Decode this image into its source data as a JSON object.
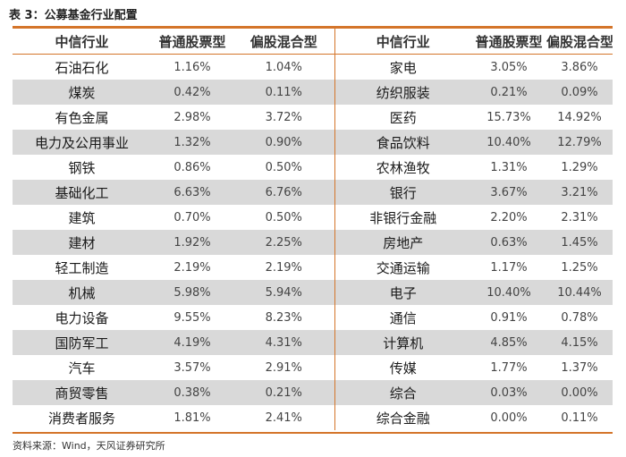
{
  "title": "表 3：公募基金行业配置",
  "source": "资料来源：Wind，天风证券研究所",
  "headers": [
    "中信行业",
    "普通股票型",
    "偏股混合型",
    "中信行业",
    "普通股票型",
    "偏股混合型"
  ],
  "colors": {
    "accent": "#d4752a",
    "shade": "#d9d9d9"
  },
  "rows": [
    {
      "l_name": "石油石化",
      "l_stock": "1.16%",
      "l_mixed": "1.04%",
      "r_name": "家电",
      "r_stock": "3.05%",
      "r_mixed": "3.86%"
    },
    {
      "l_name": "煤炭",
      "l_stock": "0.42%",
      "l_mixed": "0.11%",
      "r_name": "纺织服装",
      "r_stock": "0.21%",
      "r_mixed": "0.09%"
    },
    {
      "l_name": "有色金属",
      "l_stock": "2.98%",
      "l_mixed": "3.72%",
      "r_name": "医药",
      "r_stock": "15.73%",
      "r_mixed": "14.92%"
    },
    {
      "l_name": "电力及公用事业",
      "l_stock": "1.32%",
      "l_mixed": "0.90%",
      "r_name": "食品饮料",
      "r_stock": "10.40%",
      "r_mixed": "12.79%"
    },
    {
      "l_name": "钢铁",
      "l_stock": "0.86%",
      "l_mixed": "0.50%",
      "r_name": "农林渔牧",
      "r_stock": "1.31%",
      "r_mixed": "1.29%"
    },
    {
      "l_name": "基础化工",
      "l_stock": "6.63%",
      "l_mixed": "6.76%",
      "r_name": "银行",
      "r_stock": "3.67%",
      "r_mixed": "3.21%"
    },
    {
      "l_name": "建筑",
      "l_stock": "0.70%",
      "l_mixed": "0.50%",
      "r_name": "非银行金融",
      "r_stock": "2.20%",
      "r_mixed": "2.31%"
    },
    {
      "l_name": "建材",
      "l_stock": "1.92%",
      "l_mixed": "2.25%",
      "r_name": "房地产",
      "r_stock": "0.63%",
      "r_mixed": "1.45%"
    },
    {
      "l_name": "轻工制造",
      "l_stock": "2.19%",
      "l_mixed": "2.19%",
      "r_name": "交通运输",
      "r_stock": "1.17%",
      "r_mixed": "1.25%"
    },
    {
      "l_name": "机械",
      "l_stock": "5.98%",
      "l_mixed": "5.94%",
      "r_name": "电子",
      "r_stock": "10.40%",
      "r_mixed": "10.44%"
    },
    {
      "l_name": "电力设备",
      "l_stock": "9.55%",
      "l_mixed": "8.23%",
      "r_name": "通信",
      "r_stock": "0.91%",
      "r_mixed": "0.78%"
    },
    {
      "l_name": "国防军工",
      "l_stock": "4.19%",
      "l_mixed": "4.31%",
      "r_name": "计算机",
      "r_stock": "4.85%",
      "r_mixed": "4.15%"
    },
    {
      "l_name": "汽车",
      "l_stock": "3.57%",
      "l_mixed": "2.91%",
      "r_name": "传媒",
      "r_stock": "1.77%",
      "r_mixed": "1.37%"
    },
    {
      "l_name": "商贸零售",
      "l_stock": "0.38%",
      "l_mixed": "0.21%",
      "r_name": "综合",
      "r_stock": "0.03%",
      "r_mixed": "0.00%"
    },
    {
      "l_name": "消费者服务",
      "l_stock": "1.81%",
      "l_mixed": "2.41%",
      "r_name": "综合金融",
      "r_stock": "0.00%",
      "r_mixed": "0.11%"
    }
  ]
}
